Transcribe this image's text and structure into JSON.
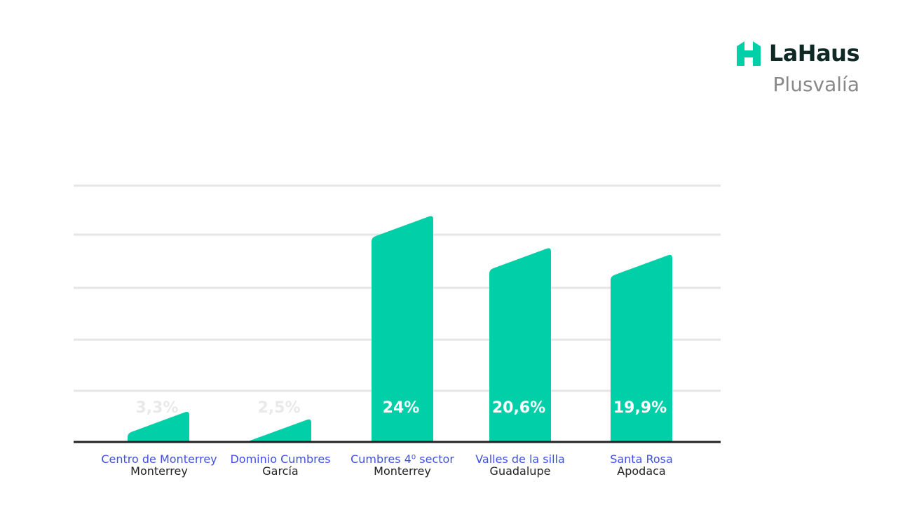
{
  "brand": {
    "name": "LaHaus",
    "subtitle": "Plusvalía",
    "logo_icon": "house-logo-icon",
    "color": "#00cfa8"
  },
  "chart_data": {
    "type": "bar",
    "categories": [
      "Centro de Monterrey",
      "Dominio Cumbres",
      "Cumbres 4⁰ sector",
      "Valles de la silla",
      "Santa Rosa"
    ],
    "subcategories": [
      "Monterrey",
      "García",
      "Monterrey",
      "Guadalupe",
      "Apodaca"
    ],
    "values": [
      3.3,
      2.5,
      24,
      20.6,
      19.9
    ],
    "value_labels": [
      "3,3%",
      "2,5%",
      "24%",
      "20,6%",
      "19,9%"
    ],
    "unit": "%",
    "ylim": [
      0,
      25
    ],
    "grid": true,
    "bar_color": "#00cfa8",
    "category_label_color": "#3f4fe0",
    "subcategory_label_color": "#222222",
    "title": "",
    "xlabel": "",
    "ylabel": ""
  }
}
